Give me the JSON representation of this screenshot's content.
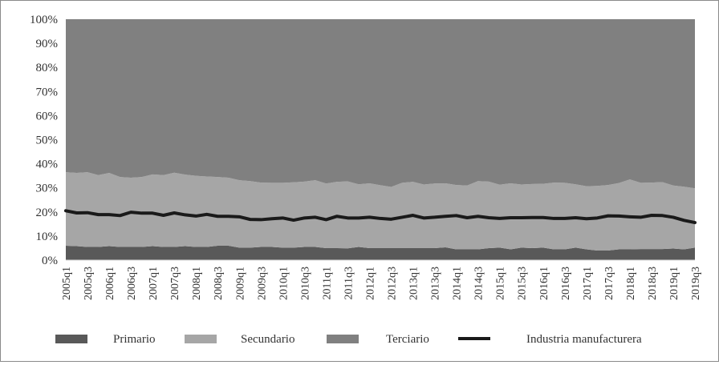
{
  "chart_data": {
    "type": "area",
    "stacked": true,
    "percent": true,
    "title": "",
    "xlabel": "",
    "ylabel": "",
    "ylim": [
      0,
      100
    ],
    "yticks": [
      "0%",
      "10%",
      "20%",
      "30%",
      "40%",
      "50%",
      "60%",
      "70%",
      "80%",
      "90%",
      "100%"
    ],
    "x": [
      "2005q1",
      "2005q2",
      "2005q3",
      "2005q4",
      "2006q1",
      "2006q2",
      "2006q3",
      "2006q4",
      "2007q1",
      "2007q2",
      "2007q3",
      "2007q4",
      "2008q1",
      "2008q2",
      "2008q3",
      "2008q4",
      "2009q1",
      "2009q2",
      "2009q3",
      "2009q4",
      "2010q1",
      "2010q2",
      "2010q3",
      "2010q4",
      "2011q1",
      "2011q2",
      "2011q3",
      "2011q4",
      "2012q1",
      "2012q2",
      "2012q3",
      "2012q4",
      "2013q1",
      "2013q2",
      "2013q3",
      "2013q4",
      "2014q1",
      "2014q2",
      "2014q3",
      "2014q4",
      "2015q1",
      "2015q2",
      "2015q3",
      "2015q4",
      "2016q1",
      "2016q2",
      "2016q3",
      "2016q4",
      "2017q1",
      "2017q2",
      "2017q3",
      "2017q4",
      "2018q1",
      "2018q2",
      "2018q3",
      "2018q4",
      "2019q1",
      "2019q2",
      "2019q3"
    ],
    "xtick_labels": [
      "2005q1",
      "2005q3",
      "2006q1",
      "2006q3",
      "2007q1",
      "2007q3",
      "2008q1",
      "2008q3",
      "2009q1",
      "2009q3",
      "2010q1",
      "2010q3",
      "2011q1",
      "2011q3",
      "2012q1",
      "2012q3",
      "2013q1",
      "2013q3",
      "2014q1",
      "2014q3",
      "2015q1",
      "2015q3",
      "2016q1",
      "2016q3",
      "2017q1",
      "2017q3",
      "2018q1",
      "2018q3",
      "2019q1",
      "2019q3"
    ],
    "series": [
      {
        "name": "Primario",
        "color": "#595959",
        "values": [
          6,
          5.8,
          5.5,
          5.5,
          5.8,
          5.5,
          5.5,
          5.5,
          5.8,
          5.5,
          5.5,
          5.8,
          5.5,
          5.5,
          6,
          6,
          5.2,
          5.2,
          5.5,
          5.5,
          5.2,
          5.2,
          5.5,
          5.5,
          5,
          5,
          4.9,
          5.5,
          5,
          5,
          5,
          5,
          5,
          5,
          5,
          5.3,
          4.5,
          4.5,
          4.5,
          5,
          5.2,
          4.5,
          5.2,
          5,
          5.2,
          4.5,
          4.5,
          5.2,
          4.5,
          4,
          4,
          4.5,
          4.5,
          4.6,
          4.6,
          4.6,
          4.8,
          4.5,
          5.2
        ]
      },
      {
        "name": "Secundario",
        "color": "#a6a6a6",
        "values": [
          30.5,
          30.4,
          31,
          29.8,
          30.4,
          29,
          28.7,
          29,
          29.8,
          29.8,
          30.8,
          29.7,
          29.5,
          29.2,
          28.5,
          28.2,
          28,
          27.6,
          26.7,
          26.6,
          26.9,
          27.1,
          27.1,
          27.7,
          26.8,
          27.5,
          27.8,
          26,
          26.9,
          26.1,
          25.4,
          27.1,
          27.5,
          26.4,
          26.8,
          26.6,
          26.7,
          26.5,
          28.3,
          27.6,
          26.1,
          27.4,
          26.2,
          26.6,
          26.5,
          27.7,
          27.6,
          26.3,
          26.2,
          26.8,
          27.2,
          27.5,
          29,
          27.5,
          27.6,
          27.8,
          26.2,
          26,
          24.6
        ]
      },
      {
        "name": "Terciario",
        "color": "#808080",
        "values": [
          63.5,
          63.8,
          63.5,
          64.7,
          63.8,
          65.5,
          65.8,
          65.5,
          64.4,
          64.7,
          63.7,
          64.5,
          65,
          65.3,
          65.5,
          65.8,
          66.8,
          67.2,
          67.8,
          67.9,
          67.9,
          67.7,
          67.4,
          66.8,
          68.2,
          67.5,
          67.3,
          68.5,
          68.1,
          68.9,
          69.6,
          67.9,
          67.5,
          68.6,
          68.2,
          68.1,
          68.8,
          69,
          67.2,
          67.4,
          68.7,
          68.1,
          68.6,
          68.4,
          68.3,
          67.8,
          67.9,
          68.5,
          69.3,
          69.2,
          68.8,
          68,
          66.5,
          67.9,
          67.8,
          67.6,
          69,
          69.5,
          70.2
        ]
      }
    ],
    "line_series": [
      {
        "name": "Industria manufacturera",
        "color": "#1a1a1a",
        "values": [
          20.5,
          19.6,
          19.7,
          18.9,
          18.9,
          18.5,
          19.9,
          19.5,
          19.5,
          18.6,
          19.6,
          18.8,
          18.3,
          19,
          18.2,
          18.2,
          18,
          16.9,
          16.8,
          17.2,
          17.5,
          16.6,
          17.5,
          17.8,
          16.8,
          18.2,
          17.5,
          17.5,
          17.8,
          17.3,
          17,
          17.8,
          18.6,
          17.5,
          17.8,
          18.2,
          18.5,
          17.6,
          18.2,
          17.6,
          17.3,
          17.6,
          17.6,
          17.7,
          17.7,
          17.3,
          17.3,
          17.6,
          17.2,
          17.5,
          18.4,
          18.3,
          18,
          17.8,
          18.6,
          18.5,
          17.8,
          16.5,
          15.6
        ]
      }
    ],
    "legend": {
      "placement": "bottom",
      "items": [
        {
          "label": "Primario",
          "color": "#595959",
          "kind": "area"
        },
        {
          "label": "Secundario",
          "color": "#a6a6a6",
          "kind": "area"
        },
        {
          "label": "Terciario",
          "color": "#808080",
          "kind": "area"
        },
        {
          "label": "Industria manufacturera",
          "color": "#1a1a1a",
          "kind": "line"
        }
      ]
    }
  }
}
